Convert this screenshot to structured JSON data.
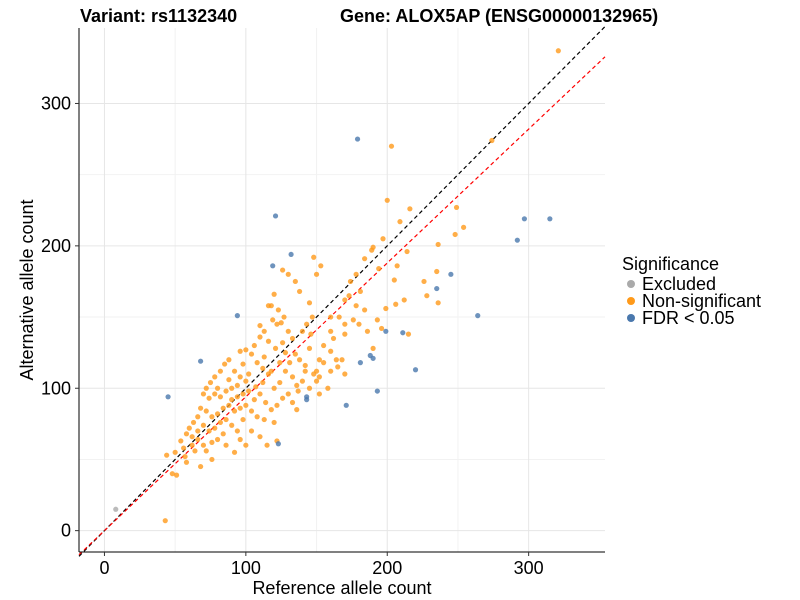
{
  "chart_data": {
    "type": "scatter",
    "title_left": "Variant: rs1132340",
    "title_right": "Gene: ALOX5AP (ENSG00000132965)",
    "xlabel": "Reference allele count",
    "ylabel": "Alternative allele count",
    "xlim": [
      -18,
      354
    ],
    "ylim": [
      -15,
      353
    ],
    "xticks": [
      0,
      100,
      200,
      300
    ],
    "yticks": [
      0,
      100,
      200,
      300
    ],
    "minor_grid": [
      50,
      150,
      250
    ],
    "grid": true,
    "legend": {
      "title": "Significance",
      "placement": "right",
      "entries": [
        {
          "label": "Excluded",
          "color": "#aaaaaa"
        },
        {
          "label": "Non-significant",
          "color": "#ff9a1a"
        },
        {
          "label": "FDR < 0.05",
          "color": "#4a78ad"
        }
      ]
    },
    "reference_lines": [
      {
        "name": "identity",
        "slope": 1,
        "intercept": 0,
        "color": "#000000",
        "dashed": true
      },
      {
        "name": "fit",
        "slope": 0.94,
        "intercept": 0,
        "color": "#ff0000",
        "dashed": true
      }
    ],
    "series": [
      {
        "name": "Excluded",
        "color": "#aaaaaa",
        "points": [
          [
            8,
            15
          ]
        ]
      },
      {
        "name": "FDR < 0.05",
        "color": "#4a78ad",
        "points": [
          [
            179,
            275
          ],
          [
            121,
            221
          ],
          [
            119,
            186
          ],
          [
            132,
            194
          ],
          [
            94,
            151
          ],
          [
            68,
            119
          ],
          [
            45,
            94
          ],
          [
            123,
            61
          ],
          [
            143,
            94
          ],
          [
            143,
            92
          ],
          [
            171,
            88
          ],
          [
            181,
            118
          ],
          [
            188,
            123
          ],
          [
            190,
            121
          ],
          [
            199,
            140
          ],
          [
            193,
            98
          ],
          [
            211,
            139
          ],
          [
            220,
            113
          ],
          [
            235,
            170
          ],
          [
            245,
            180
          ],
          [
            264,
            151
          ],
          [
            292,
            204
          ],
          [
            297,
            219
          ],
          [
            315,
            219
          ]
        ]
      },
      {
        "name": "Non-significant",
        "color": "#ff9a1a",
        "points": [
          [
            321,
            337
          ],
          [
            203,
            270
          ],
          [
            274,
            274
          ],
          [
            200,
            232
          ],
          [
            216,
            226
          ],
          [
            249,
            227
          ],
          [
            254,
            213
          ],
          [
            248,
            208
          ],
          [
            236,
            201
          ],
          [
            235,
            182
          ],
          [
            214,
            196
          ],
          [
            207,
            186
          ],
          [
            209,
            217
          ],
          [
            190,
            199
          ],
          [
            189,
            197
          ],
          [
            197,
            205
          ],
          [
            194,
            184
          ],
          [
            184,
            191
          ],
          [
            178,
            180
          ],
          [
            174,
            175
          ],
          [
            173,
            165
          ],
          [
            170,
            162
          ],
          [
            178,
            158
          ],
          [
            166,
            150
          ],
          [
            160,
            150
          ],
          [
            162,
            135
          ],
          [
            176,
            148
          ],
          [
            180,
            145
          ],
          [
            184,
            155
          ],
          [
            199,
            156
          ],
          [
            206,
            159
          ],
          [
            212,
            162
          ],
          [
            215,
            138
          ],
          [
            190,
            128
          ],
          [
            193,
            148
          ],
          [
            181,
            168
          ],
          [
            170,
            145
          ],
          [
            168,
            120
          ],
          [
            165,
            115
          ],
          [
            160,
            140
          ],
          [
            155,
            130
          ],
          [
            152,
            120
          ],
          [
            148,
            110
          ],
          [
            145,
            128
          ],
          [
            147,
            150
          ],
          [
            150,
            180
          ],
          [
            153,
            186
          ],
          [
            148,
            192
          ],
          [
            130,
            180
          ],
          [
            126,
            183
          ],
          [
            135,
            175
          ],
          [
            145,
            160
          ],
          [
            138,
            168
          ],
          [
            120,
            166
          ],
          [
            118,
            158
          ],
          [
            123,
            155
          ],
          [
            127,
            150
          ],
          [
            110,
            136
          ],
          [
            113,
            140
          ],
          [
            116,
            133
          ],
          [
            119,
            148
          ],
          [
            122,
            145
          ],
          [
            125,
            146
          ],
          [
            121,
            128
          ],
          [
            126,
            132
          ],
          [
            130,
            140
          ],
          [
            133,
            135
          ],
          [
            128,
            125
          ],
          [
            131,
            118
          ],
          [
            135,
            124
          ],
          [
            138,
            120
          ],
          [
            142,
            116
          ],
          [
            140,
            105
          ],
          [
            137,
            98
          ],
          [
            145,
            100
          ],
          [
            150,
            105
          ],
          [
            155,
            118
          ],
          [
            160,
            112
          ],
          [
            164,
            120
          ],
          [
            170,
            110
          ],
          [
            158,
            100
          ],
          [
            152,
            96
          ],
          [
            133,
            108
          ],
          [
            128,
            112
          ],
          [
            124,
            104
          ],
          [
            120,
            100
          ],
          [
            116,
            110
          ],
          [
            112,
            114
          ],
          [
            108,
            118
          ],
          [
            104,
            124
          ],
          [
            100,
            127
          ],
          [
            98,
            117
          ],
          [
            96,
            108
          ],
          [
            92,
            112
          ],
          [
            88,
            120
          ],
          [
            85,
            117
          ],
          [
            82,
            112
          ],
          [
            78,
            108
          ],
          [
            75,
            104
          ],
          [
            72,
            100
          ],
          [
            70,
            96
          ],
          [
            74,
            93
          ],
          [
            78,
            96
          ],
          [
            82,
            94
          ],
          [
            86,
            98
          ],
          [
            90,
            100
          ],
          [
            94,
            102
          ],
          [
            98,
            96
          ],
          [
            102,
            98
          ],
          [
            106,
            92
          ],
          [
            110,
            96
          ],
          [
            114,
            90
          ],
          [
            118,
            85
          ],
          [
            122,
            88
          ],
          [
            126,
            93
          ],
          [
            130,
            96
          ],
          [
            133,
            90
          ],
          [
            136,
            85
          ],
          [
            120,
            76
          ],
          [
            113,
            78
          ],
          [
            108,
            80
          ],
          [
            104,
            84
          ],
          [
            100,
            88
          ],
          [
            96,
            86
          ],
          [
            92,
            84
          ],
          [
            88,
            88
          ],
          [
            84,
            86
          ],
          [
            80,
            82
          ],
          [
            76,
            80
          ],
          [
            72,
            84
          ],
          [
            68,
            86
          ],
          [
            66,
            80
          ],
          [
            63,
            76
          ],
          [
            60,
            72
          ],
          [
            58,
            68
          ],
          [
            62,
            66
          ],
          [
            66,
            70
          ],
          [
            70,
            74
          ],
          [
            74,
            70
          ],
          [
            78,
            72
          ],
          [
            82,
            76
          ],
          [
            86,
            78
          ],
          [
            90,
            74
          ],
          [
            94,
            70
          ],
          [
            98,
            78
          ],
          [
            84,
            68
          ],
          [
            80,
            64
          ],
          [
            76,
            62
          ],
          [
            70,
            60
          ],
          [
            66,
            64
          ],
          [
            62,
            60
          ],
          [
            56,
            58
          ],
          [
            54,
            63
          ],
          [
            50,
            55
          ],
          [
            57,
            52
          ],
          [
            64,
            56
          ],
          [
            72,
            56
          ],
          [
            86,
            60
          ],
          [
            92,
            55
          ],
          [
            110,
            66
          ],
          [
            115,
            60
          ],
          [
            122,
            63
          ],
          [
            104,
            70
          ],
          [
            96,
            64
          ],
          [
            100,
            60
          ],
          [
            48,
            40
          ],
          [
            44,
            53
          ],
          [
            43,
            7
          ],
          [
            51,
            39
          ],
          [
            58,
            48
          ],
          [
            68,
            45
          ],
          [
            76,
            50
          ],
          [
            90,
            92
          ],
          [
            94,
            94
          ],
          [
            88,
            106
          ],
          [
            80,
            100
          ],
          [
            102,
            110
          ],
          [
            112,
            104
          ],
          [
            118,
            112
          ],
          [
            124,
            118
          ],
          [
            106,
            130
          ],
          [
            96,
            126
          ],
          [
            140,
            140
          ],
          [
            143,
            145
          ],
          [
            146,
            138
          ],
          [
            100,
            105
          ],
          [
            107,
            101
          ],
          [
            113,
            122
          ],
          [
            136,
            102
          ],
          [
            152,
            108
          ],
          [
            160,
            126
          ],
          [
            170,
            138
          ],
          [
            186,
            140
          ],
          [
            196,
            142
          ],
          [
            205,
            176
          ],
          [
            236,
            160
          ],
          [
            228,
            165
          ],
          [
            226,
            175
          ],
          [
            116,
            158
          ],
          [
            110,
            144
          ],
          [
            142,
            112
          ],
          [
            150,
            112
          ]
        ]
      }
    ]
  }
}
